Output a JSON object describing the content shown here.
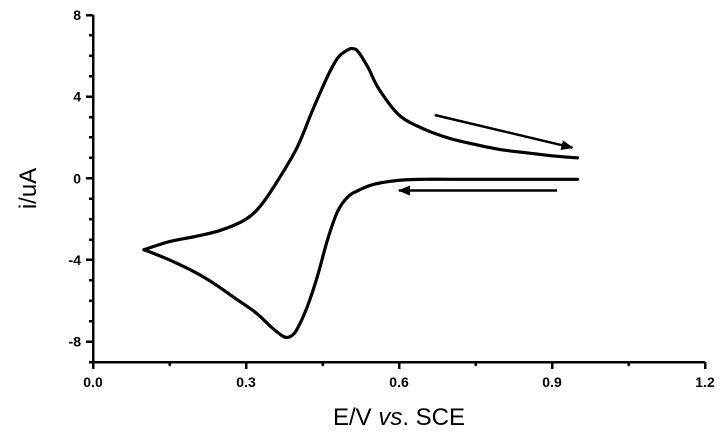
{
  "chart_data": {
    "type": "line",
    "title": "",
    "xlabel_plain": "E/V ",
    "xlabel_italic": "vs",
    "xlabel_suffix": ". SCE",
    "ylabel": "i/uA",
    "xlim": [
      0.0,
      1.2
    ],
    "ylim": [
      -9,
      8
    ],
    "xticks": [
      0.0,
      0.3,
      0.6,
      0.9,
      1.2
    ],
    "xtick_labels": [
      "0.0",
      "0.3",
      "0.6",
      "0.9",
      "1.2"
    ],
    "yticks": [
      -8,
      -4,
      0,
      4,
      8
    ],
    "ytick_labels": [
      "-8",
      "-4",
      "0",
      "4",
      "8"
    ],
    "x_minor_step": 0.15,
    "y_minor_step": 1,
    "grid": false,
    "legend": "none",
    "series": [
      {
        "forward_scan": {
          "x": [
            0.1,
            0.15,
            0.2,
            0.25,
            0.3,
            0.33,
            0.36,
            0.4,
            0.43,
            0.46,
            0.48,
            0.5,
            0.51,
            0.52,
            0.54,
            0.56,
            0.6,
            0.65,
            0.7,
            0.75,
            0.8,
            0.85,
            0.9,
            0.95
          ],
          "y": [
            -3.5,
            -3.1,
            -2.85,
            -2.55,
            -2.0,
            -1.3,
            -0.2,
            1.5,
            3.3,
            5.0,
            5.9,
            6.3,
            6.35,
            6.2,
            5.4,
            4.4,
            3.1,
            2.4,
            1.95,
            1.65,
            1.4,
            1.25,
            1.1,
            1.0
          ]
        },
        "reverse_scan": {
          "x": [
            0.95,
            0.9,
            0.8,
            0.7,
            0.65,
            0.6,
            0.55,
            0.52,
            0.5,
            0.48,
            0.46,
            0.44,
            0.42,
            0.4,
            0.39,
            0.38,
            0.37,
            0.35,
            0.32,
            0.28,
            0.24,
            0.2,
            0.15,
            0.1
          ],
          "y": [
            -0.05,
            -0.05,
            -0.05,
            -0.05,
            -0.05,
            -0.1,
            -0.3,
            -0.6,
            -0.9,
            -1.6,
            -3.0,
            -4.8,
            -6.3,
            -7.4,
            -7.7,
            -7.8,
            -7.7,
            -7.3,
            -6.6,
            -5.9,
            -5.2,
            -4.6,
            -4.0,
            -3.5
          ]
        },
        "style": {
          "color": "#000000"
        }
      }
    ],
    "annotations": [
      {
        "kind": "arrow",
        "direction": "right",
        "from": [
          0.67,
          3.1
        ],
        "to": [
          0.94,
          1.5
        ]
      },
      {
        "kind": "arrow",
        "direction": "left",
        "from": [
          0.91,
          -0.6
        ],
        "to": [
          0.6,
          -0.6
        ]
      }
    ]
  }
}
